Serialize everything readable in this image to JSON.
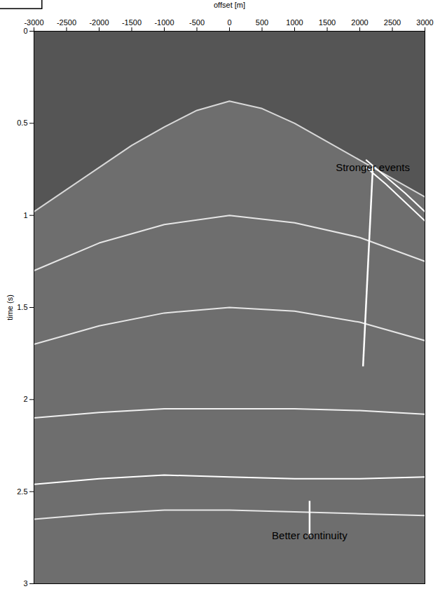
{
  "chart_data": {
    "type": "line",
    "x_label": "offset [m]",
    "y_label": "time (s)",
    "xlim": [
      -3000,
      3000
    ],
    "ylim": [
      0,
      3
    ],
    "xticks": [
      -3000,
      -2500,
      -2000,
      -1500,
      -1000,
      -500,
      0,
      500,
      1000,
      1500,
      2000,
      2500,
      3000
    ],
    "yticks": [
      0,
      0.5,
      1,
      1.5,
      2,
      2.5,
      3
    ],
    "grid": false,
    "series": [
      {
        "color": "#d8d8d8",
        "x": [
          -3000,
          -2500,
          -2000,
          -1500,
          -1000,
          -500,
          0,
          500,
          1000,
          1500,
          2000,
          2500,
          3000
        ],
        "values": [
          0.98,
          0.86,
          0.74,
          0.62,
          0.52,
          0.43,
          0.38,
          0.42,
          0.5,
          0.6,
          0.7,
          0.8,
          0.9
        ]
      },
      {
        "color": "#ffffff",
        "x": [
          2100,
          2400,
          2700,
          3000
        ],
        "values": [
          0.7,
          0.79,
          0.88,
          0.98
        ]
      },
      {
        "color": "#ffffff",
        "x": [
          2100,
          2400,
          2700,
          3000
        ],
        "values": [
          0.74,
          0.83,
          0.93,
          1.03
        ]
      },
      {
        "color": "#e6e6e6",
        "x": [
          -3000,
          -2000,
          -1000,
          0,
          1000,
          2000,
          3000
        ],
        "values": [
          1.3,
          1.15,
          1.05,
          1.0,
          1.04,
          1.12,
          1.25
        ]
      },
      {
        "color": "#e6e6e6",
        "x": [
          -3000,
          -2000,
          -1000,
          0,
          1000,
          2000,
          3000
        ],
        "values": [
          1.7,
          1.6,
          1.53,
          1.5,
          1.52,
          1.58,
          1.68
        ]
      },
      {
        "color": "#f0f0f0",
        "x": [
          -3000,
          -2000,
          -1000,
          0,
          1000,
          2000,
          3000
        ],
        "values": [
          2.1,
          2.07,
          2.05,
          2.05,
          2.05,
          2.06,
          2.08
        ]
      },
      {
        "color": "#ffffff",
        "x": [
          -3000,
          -2000,
          -1000,
          0,
          1000,
          2000,
          3000
        ],
        "values": [
          2.46,
          2.43,
          2.41,
          2.42,
          2.43,
          2.43,
          2.42
        ]
      },
      {
        "color": "#e6e6e6",
        "x": [
          -3000,
          -2000,
          -1000,
          0,
          1000,
          2000,
          3000
        ],
        "values": [
          2.65,
          2.62,
          2.6,
          2.6,
          2.61,
          2.62,
          2.63
        ]
      }
    ],
    "annotations": [
      {
        "text": "Stronger events",
        "x": 2200,
        "y": 0.74,
        "arrow_to": [
          2050,
          1.82
        ]
      },
      {
        "text": "Better continuity",
        "x": 1230,
        "y": 2.74,
        "arrow_to": [
          1230,
          2.55
        ]
      }
    ]
  }
}
